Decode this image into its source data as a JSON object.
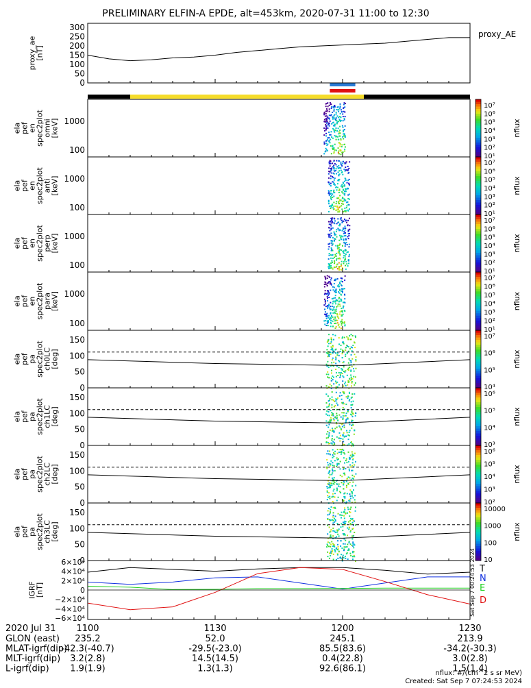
{
  "title": "PRELIMINARY ELFIN-A EPDE, alt=453km, 2020-07-31 11:00 to 12:30",
  "colors": {
    "axis": "#000000",
    "panel_bg": "#ffffff",
    "spin_bar_black": "#000000",
    "spin_bar_yellow": "#f5dc2a",
    "marker_blue": "#2a7bd6",
    "marker_red": "#e01010",
    "grf_T": "#000000",
    "grf_N": "#1030e0",
    "grf_E": "#20d020",
    "grf_D": "#e01010"
  },
  "chart_data": [
    {
      "type": "line",
      "panel": "proxy_ae",
      "ylabel": [
        "proxy_ae",
        "[nT]"
      ],
      "legend": "proxy_AE",
      "yticks": [
        "300",
        "250",
        "200",
        "150",
        "100",
        "50",
        "0"
      ],
      "ylim": [
        0,
        300
      ],
      "x_minutes": [
        0,
        5,
        10,
        15,
        20,
        25,
        30,
        35,
        40,
        45,
        50,
        55,
        60,
        65,
        70,
        75,
        80,
        85,
        90
      ],
      "values": [
        150,
        130,
        120,
        125,
        135,
        140,
        150,
        165,
        175,
        185,
        195,
        200,
        205,
        210,
        215,
        225,
        235,
        245,
        245
      ]
    },
    {
      "type": "heatmap",
      "panel": "spectrum-omni",
      "ylabel": [
        "ela",
        "pef",
        "en",
        "spec2plot",
        "omni",
        "[keV]"
      ],
      "yticks": [
        "1000",
        "100"
      ],
      "colorbar_ticks": [
        "10⁷",
        "10⁶",
        "10⁵",
        "10⁴",
        "10³",
        "10²",
        "10¹"
      ],
      "colorbar_label": "nflux"
    },
    {
      "type": "heatmap",
      "panel": "spectrum-anti",
      "ylabel": [
        "ela",
        "pef",
        "en",
        "spec2plot",
        "anti",
        "[keV]"
      ],
      "yticks": [
        "1000",
        "100"
      ],
      "colorbar_ticks": [
        "10⁷",
        "10⁶",
        "10⁵",
        "10⁴",
        "10³",
        "10²",
        "10¹"
      ],
      "colorbar_label": "nflux"
    },
    {
      "type": "heatmap",
      "panel": "spectrum-perp",
      "ylabel": [
        "ela",
        "pef",
        "en",
        "spec2plot",
        "perp",
        "[keV]"
      ],
      "yticks": [
        "1000",
        "100"
      ],
      "colorbar_ticks": [
        "10⁷",
        "10⁶",
        "10⁵",
        "10⁴",
        "10³",
        "10²",
        "10¹"
      ],
      "colorbar_label": "nflux"
    },
    {
      "type": "heatmap",
      "panel": "spectrum-para",
      "ylabel": [
        "ela",
        "pef",
        "en",
        "spec2plot",
        "para",
        "[keV]"
      ],
      "yticks": [
        "1000",
        "100"
      ],
      "colorbar_ticks": [
        "10⁷",
        "10⁶",
        "10⁵",
        "10⁴",
        "10³",
        "10²",
        "10¹"
      ],
      "colorbar_label": "nflux"
    },
    {
      "type": "heatmap",
      "panel": "pitch-ch0LC",
      "ylabel": [
        "ela",
        "pef",
        "pa",
        "spec2plot",
        "ch0LC",
        "[deg]"
      ],
      "yticks": [
        "150",
        "100",
        "50",
        "0"
      ],
      "ylim": [
        0,
        180
      ],
      "dashed_level": 112,
      "solid_level": 88,
      "colorbar_ticks": [
        "10⁷",
        "10⁶",
        "10⁵",
        "10⁴"
      ],
      "colorbar_label": "nflux"
    },
    {
      "type": "heatmap",
      "panel": "pitch-ch1LC",
      "ylabel": [
        "ela",
        "pef",
        "pa",
        "spec2plot",
        "ch1LC",
        "[deg]"
      ],
      "yticks": [
        "150",
        "100",
        "50",
        "0"
      ],
      "ylim": [
        0,
        180
      ],
      "dashed_level": 112,
      "solid_level": 88,
      "colorbar_ticks": [
        "10⁶",
        "10⁵",
        "10⁴",
        "10³"
      ],
      "colorbar_label": "nflux"
    },
    {
      "type": "heatmap",
      "panel": "pitch-ch2LC",
      "ylabel": [
        "ela",
        "pef",
        "pa",
        "spec2plot",
        "ch2LC",
        "[deg]"
      ],
      "yticks": [
        "150",
        "100",
        "50",
        "0"
      ],
      "ylim": [
        0,
        180
      ],
      "dashed_level": 112,
      "solid_level": 88,
      "colorbar_ticks": [
        "10⁶",
        "10⁵",
        "10⁴",
        "10³",
        "10²"
      ],
      "colorbar_label": "nflux"
    },
    {
      "type": "heatmap",
      "panel": "pitch-ch3LC",
      "ylabel": [
        "ela",
        "pef",
        "pa",
        "spec2plot",
        "ch3LC",
        "[deg]"
      ],
      "yticks": [
        "150",
        "100",
        "50",
        "0"
      ],
      "ylim": [
        0,
        180
      ],
      "dashed_level": 112,
      "solid_level": 88,
      "colorbar_ticks": [
        "10000",
        "1000",
        "100",
        "10"
      ],
      "colorbar_label": "nflux"
    },
    {
      "type": "line",
      "panel": "igrf",
      "ylabel": [
        "IGRF",
        "[nT]"
      ],
      "yticks": [
        "6×10⁴",
        "4×10⁴",
        "2×10⁴",
        "0",
        "−2×10⁴",
        "−4×10⁴",
        "−6×10⁴"
      ],
      "ylim": [
        -60000,
        60000
      ],
      "x_minutes": [
        0,
        10,
        20,
        30,
        40,
        50,
        60,
        70,
        80,
        90
      ],
      "series": [
        {
          "name": "T",
          "values": [
            38000,
            48000,
            44000,
            40000,
            45000,
            48000,
            48000,
            42000,
            34000,
            38000
          ]
        },
        {
          "name": "N",
          "values": [
            17000,
            12000,
            17000,
            26000,
            28000,
            15000,
            2000,
            15000,
            28000,
            28000
          ]
        },
        {
          "name": "E",
          "values": [
            8000,
            6000,
            1000,
            1500,
            3000,
            3000,
            3500,
            4000,
            4000,
            4000
          ]
        },
        {
          "name": "D",
          "values": [
            -28000,
            -42000,
            -36000,
            -5000,
            35000,
            48000,
            44000,
            18000,
            -10000,
            -30000
          ]
        }
      ]
    }
  ],
  "time_axis": {
    "date_label": "2020 Jul 31",
    "ticks": [
      "1100",
      "1130",
      "1200",
      "1230"
    ]
  },
  "ephemeris": [
    {
      "label": "GLON (east)",
      "values": [
        "235.2",
        "52.0",
        "245.1",
        "213.9"
      ]
    },
    {
      "label": "MLAT-igrf(dip)",
      "values": [
        "-42.3(-40.7)",
        "-29.5(-23.0)",
        "85.5(83.6)",
        "-34.2(-30.3)"
      ]
    },
    {
      "label": "MLT-igrf(dip)",
      "values": [
        "3.2(2.8)",
        "14.5(14.5)",
        "0.4(22.8)",
        "3.0(2.8)"
      ]
    },
    {
      "label": "L-igrf(dip)",
      "values": [
        "1.9(1.9)",
        "1.3(1.3)",
        "92.6(86.1)",
        "1.5(1.4)"
      ]
    }
  ],
  "footer": {
    "units": "nflux: #/(cm^2 s sr MeV)",
    "created": "Created: Sat Sep  7 07:24:53 2024",
    "side_stamp": "Sat Sep  7 00:24:53 2024"
  }
}
